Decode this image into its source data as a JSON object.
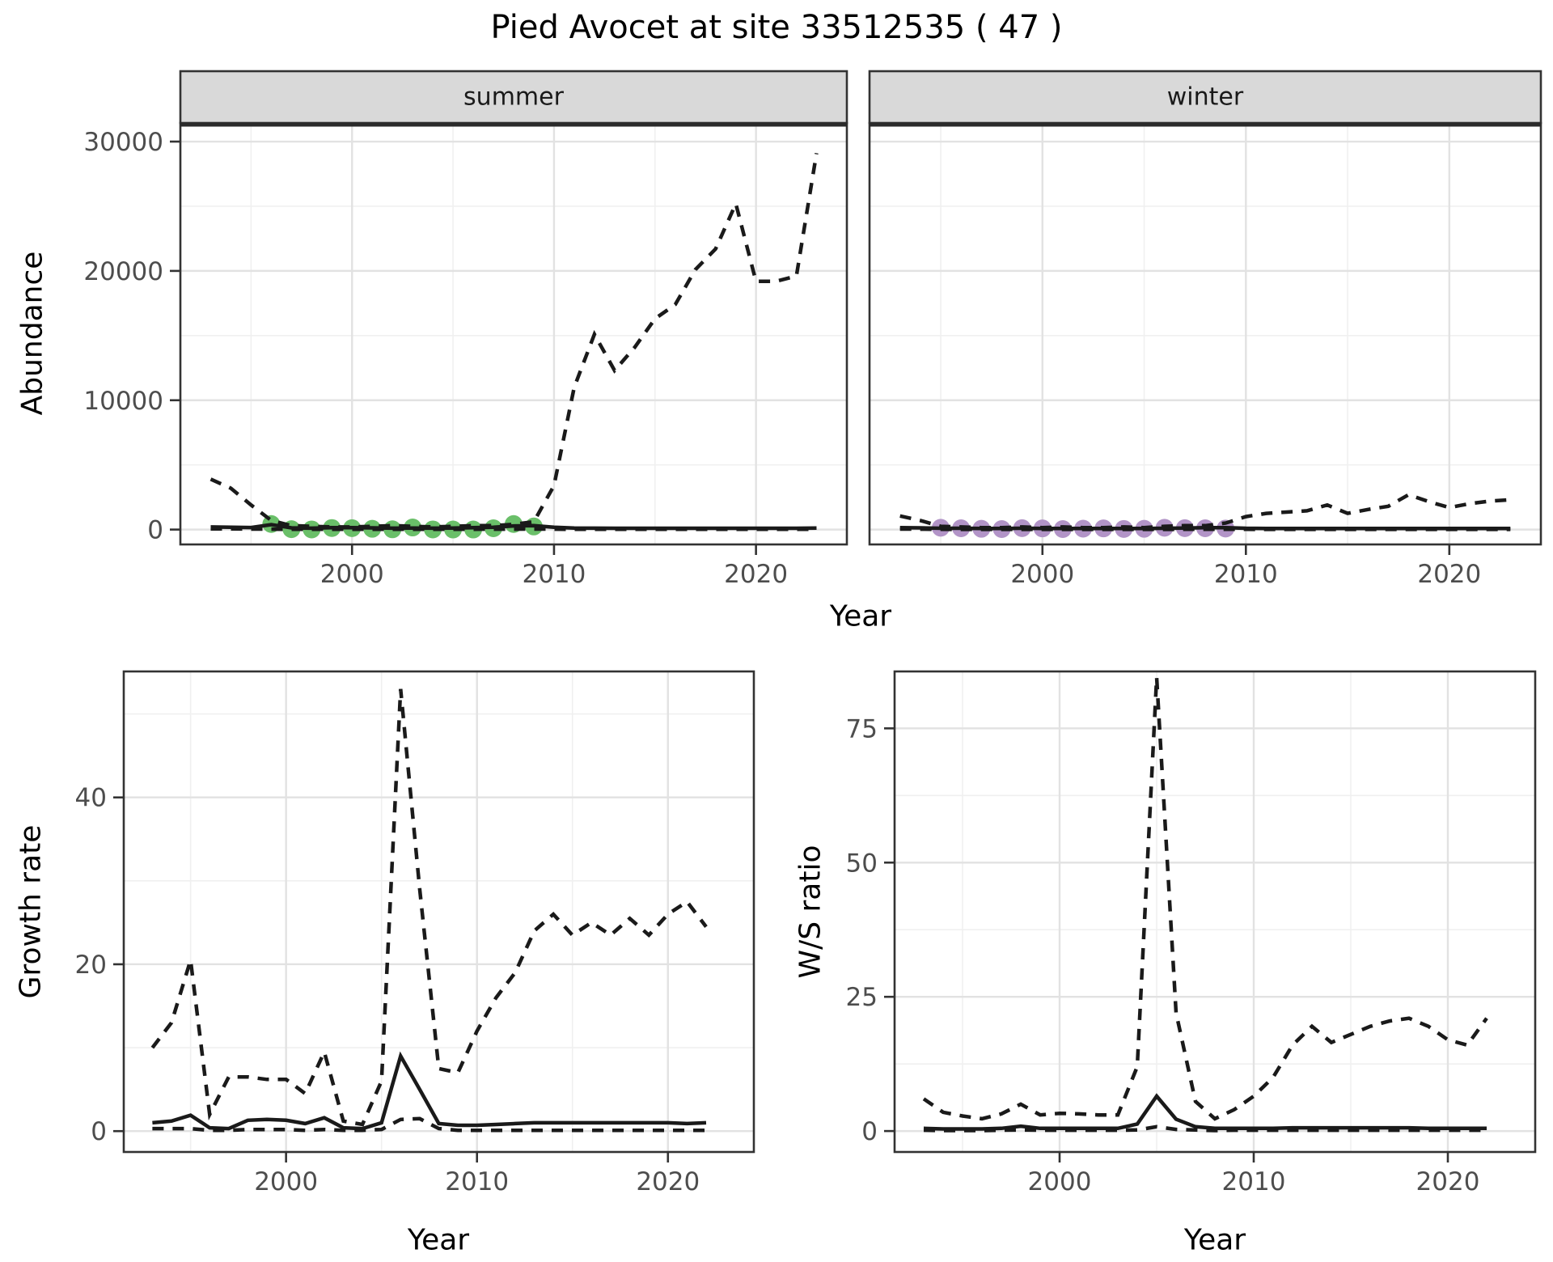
{
  "title": "Pied Avocet at site 33512535 ( 47 )",
  "axes": {
    "x_label": "Year",
    "abundance_label": "Abundance",
    "growth_label": "Growth rate",
    "ws_label": "W/S ratio"
  },
  "facets": {
    "summer": "summer",
    "winter": "winter"
  },
  "colors": {
    "summer_points": "#6abf69",
    "winter_points": "#b294c7",
    "line": "#1a1a1a",
    "strip_fill": "#d9d9d9",
    "panel_border": "#333333",
    "grid_major": "#e2e2e2",
    "grid_minor": "#f0f0f0",
    "tick_text": "#4d4d4d"
  },
  "chart_data": [
    {
      "panel": "summer",
      "type": "line",
      "facet_label": "summer",
      "xlabel": "Year",
      "ylabel": "Abundance",
      "x_domain": [
        1991.5,
        2024.5
      ],
      "y_domain": [
        -1150,
        31440
      ],
      "x_ticks": [
        2000,
        2010,
        2020
      ],
      "x_tick_labels": [
        "2000",
        "2010",
        "2020"
      ],
      "x_minor": [
        1995,
        2005,
        2015
      ],
      "y_ticks": [
        0,
        10000,
        20000,
        30000
      ],
      "y_tick_labels": [
        "0",
        "10000",
        "20000",
        "30000"
      ],
      "y_minor": [
        5000,
        15000,
        25000
      ],
      "x": [
        1993,
        1994,
        1995,
        1996,
        1997,
        1998,
        1999,
        2000,
        2001,
        2002,
        2003,
        2004,
        2005,
        2006,
        2007,
        2008,
        2009,
        2010,
        2011,
        2012,
        2013,
        2014,
        2015,
        2016,
        2017,
        2018,
        2019,
        2020,
        2021,
        2022,
        2023
      ],
      "series": [
        {
          "name": "mean",
          "style": "solid",
          "values": [
            200,
            180,
            160,
            380,
            130,
            110,
            150,
            150,
            130,
            110,
            120,
            110,
            120,
            150,
            180,
            280,
            300,
            180,
            120,
            110,
            100,
            100,
            100,
            100,
            100,
            100,
            100,
            100,
            100,
            100,
            120
          ]
        },
        {
          "name": "lower_ci",
          "style": "dashed",
          "values": [
            60,
            50,
            40,
            30,
            20,
            20,
            20,
            20,
            20,
            20,
            20,
            20,
            20,
            20,
            30,
            30,
            40,
            30,
            20,
            20,
            20,
            20,
            20,
            20,
            20,
            20,
            20,
            20,
            20,
            20,
            20
          ]
        },
        {
          "name": "upper_ci",
          "style": "dashed",
          "values": [
            3900,
            3200,
            1900,
            700,
            300,
            250,
            200,
            200,
            250,
            300,
            250,
            200,
            250,
            300,
            300,
            400,
            600,
            3400,
            11000,
            15100,
            12300,
            14100,
            16300,
            17400,
            20100,
            21700,
            25200,
            19200,
            19200,
            19600,
            29100
          ]
        }
      ],
      "points": {
        "name": "observed_counts",
        "color": "#6abf69",
        "x": [
          1996,
          1997,
          1998,
          1999,
          2000,
          2001,
          2002,
          2003,
          2004,
          2005,
          2006,
          2007,
          2008,
          2009
        ],
        "y": [
          430,
          30,
          10,
          120,
          110,
          60,
          20,
          160,
          10,
          5,
          5,
          100,
          430,
          240
        ]
      }
    },
    {
      "panel": "winter",
      "type": "line",
      "facet_label": "winter",
      "xlabel": "Year",
      "ylabel": "Abundance",
      "x_domain": [
        1991.5,
        2024.5
      ],
      "y_domain": [
        -1150,
        31440
      ],
      "x_ticks": [
        2000,
        2010,
        2020
      ],
      "x_tick_labels": [
        "2000",
        "2010",
        "2020"
      ],
      "x_minor": [
        1995,
        2005,
        2015
      ],
      "y_ticks": [
        0,
        10000,
        20000,
        30000
      ],
      "y_tick_labels": [
        "0",
        "10000",
        "20000",
        "30000"
      ],
      "y_minor": [
        5000,
        15000,
        25000
      ],
      "x": [
        1993,
        1994,
        1995,
        1996,
        1997,
        1998,
        1999,
        2000,
        2001,
        2002,
        2003,
        2004,
        2005,
        2006,
        2007,
        2008,
        2009,
        2010,
        2011,
        2012,
        2013,
        2014,
        2015,
        2016,
        2017,
        2018,
        2019,
        2020,
        2021,
        2022,
        2023
      ],
      "series": [
        {
          "name": "mean",
          "style": "solid",
          "values": [
            150,
            130,
            100,
            100,
            90,
            90,
            100,
            90,
            90,
            90,
            90,
            90,
            90,
            100,
            120,
            150,
            150,
            100,
            90,
            90,
            90,
            90,
            90,
            90,
            90,
            90,
            90,
            90,
            90,
            90,
            90
          ]
        },
        {
          "name": "lower_ci",
          "style": "dashed",
          "values": [
            40,
            30,
            20,
            15,
            15,
            15,
            15,
            15,
            15,
            15,
            15,
            15,
            15,
            15,
            20,
            20,
            20,
            20,
            15,
            15,
            15,
            15,
            15,
            15,
            15,
            15,
            15,
            15,
            15,
            15,
            15
          ]
        },
        {
          "name": "upper_ci",
          "style": "dashed",
          "values": [
            1050,
            700,
            250,
            200,
            150,
            150,
            200,
            150,
            200,
            150,
            150,
            200,
            150,
            250,
            300,
            300,
            500,
            1000,
            1250,
            1350,
            1450,
            1900,
            1250,
            1550,
            1800,
            2700,
            2150,
            1700,
            2000,
            2200,
            2300
          ]
        }
      ],
      "points": {
        "name": "observed_counts",
        "color": "#b294c7",
        "x": [
          1995,
          1996,
          1997,
          1998,
          1999,
          2000,
          2001,
          2002,
          2003,
          2004,
          2005,
          2006,
          2007,
          2008,
          2009
        ],
        "y": [
          140,
          100,
          60,
          40,
          110,
          90,
          40,
          70,
          90,
          50,
          60,
          140,
          110,
          100,
          80
        ]
      }
    },
    {
      "panel": "growth",
      "type": "line",
      "xlabel": "Year",
      "ylabel": "Growth rate",
      "x_domain": [
        1991.5,
        2024.5
      ],
      "y_domain": [
        -2.5,
        55.1
      ],
      "x_ticks": [
        2000,
        2010,
        2020
      ],
      "x_tick_labels": [
        "2000",
        "2010",
        "2020"
      ],
      "x_minor": [
        1995,
        2005,
        2015
      ],
      "y_ticks": [
        0,
        20,
        40
      ],
      "y_tick_labels": [
        "0",
        "20",
        "40"
      ],
      "y_minor": [
        10,
        30,
        50
      ],
      "x": [
        1993,
        1994,
        1995,
        1996,
        1997,
        1998,
        1999,
        2000,
        2001,
        2002,
        2003,
        2004,
        2005,
        2006,
        2007,
        2008,
        2009,
        2010,
        2011,
        2012,
        2013,
        2014,
        2015,
        2016,
        2017,
        2018,
        2019,
        2020,
        2021,
        2022
      ],
      "series": [
        {
          "name": "mean",
          "style": "solid",
          "values": [
            1.0,
            1.2,
            1.9,
            0.4,
            0.3,
            1.3,
            1.4,
            1.3,
            0.9,
            1.6,
            0.4,
            0.3,
            1.0,
            9.0,
            5.0,
            0.9,
            0.7,
            0.7,
            0.8,
            0.9,
            1.0,
            1.0,
            1.0,
            1.0,
            1.0,
            1.0,
            1.0,
            1.0,
            0.9,
            1.0
          ]
        },
        {
          "name": "lower_ci",
          "style": "dashed",
          "values": [
            0.3,
            0.3,
            0.3,
            0.1,
            0.1,
            0.2,
            0.2,
            0.2,
            0.1,
            0.2,
            0.1,
            0.1,
            0.2,
            1.4,
            1.5,
            0.3,
            0.1,
            0.1,
            0.1,
            0.1,
            0.1,
            0.1,
            0.1,
            0.1,
            0.1,
            0.1,
            0.1,
            0.1,
            0.1,
            0.1
          ]
        },
        {
          "name": "upper_ci",
          "style": "dashed",
          "values": [
            10,
            13,
            20.5,
            2,
            6.5,
            6.5,
            6.2,
            6.2,
            4.5,
            9.5,
            1.2,
            0.8,
            6,
            53,
            29,
            7.5,
            7,
            12,
            16,
            19,
            24,
            26,
            23.5,
            25,
            23.5,
            25.5,
            23.5,
            26,
            27.5,
            24.5
          ]
        }
      ]
    },
    {
      "panel": "ws",
      "type": "line",
      "xlabel": "Year",
      "ylabel": "W/S ratio",
      "x_domain": [
        1991.5,
        2024.5
      ],
      "y_domain": [
        -3.9,
        85.6
      ],
      "x_ticks": [
        2000,
        2010,
        2020
      ],
      "x_tick_labels": [
        "2000",
        "2010",
        "2020"
      ],
      "x_minor": [
        1995,
        2005,
        2015
      ],
      "y_ticks": [
        0,
        25,
        50,
        75
      ],
      "y_tick_labels": [
        "0",
        "25",
        "50",
        "75"
      ],
      "y_minor": [
        12.5,
        37.5,
        62.5
      ],
      "x": [
        1993,
        1994,
        1995,
        1996,
        1997,
        1998,
        1999,
        2000,
        2001,
        2002,
        2003,
        2004,
        2005,
        2006,
        2007,
        2008,
        2009,
        2010,
        2011,
        2012,
        2013,
        2014,
        2015,
        2016,
        2017,
        2018,
        2019,
        2020,
        2021,
        2022
      ],
      "series": [
        {
          "name": "mean",
          "style": "solid",
          "values": [
            0.5,
            0.4,
            0.4,
            0.4,
            0.5,
            0.9,
            0.5,
            0.5,
            0.5,
            0.5,
            0.5,
            1.3,
            6.5,
            2.2,
            0.8,
            0.5,
            0.5,
            0.5,
            0.5,
            0.6,
            0.6,
            0.6,
            0.6,
            0.6,
            0.6,
            0.6,
            0.5,
            0.5,
            0.5,
            0.5
          ]
        },
        {
          "name": "lower_ci",
          "style": "dashed",
          "values": [
            0.15,
            0.1,
            0.1,
            0.1,
            0.15,
            0.2,
            0.15,
            0.15,
            0.15,
            0.15,
            0.15,
            0.2,
            0.8,
            0.3,
            0.2,
            0.1,
            0.15,
            0.15,
            0.15,
            0.15,
            0.15,
            0.15,
            0.15,
            0.15,
            0.15,
            0.15,
            0.15,
            0.15,
            0.15,
            0.15
          ]
        },
        {
          "name": "upper_ci",
          "style": "dashed",
          "values": [
            6,
            3.5,
            2.8,
            2.3,
            3.2,
            5,
            3,
            3.3,
            3.2,
            3,
            3,
            12,
            84.5,
            22,
            5.5,
            2.3,
            4,
            6.5,
            10,
            16,
            19.5,
            16.5,
            18,
            19.5,
            20.5,
            21,
            19.5,
            17,
            16,
            21
          ]
        }
      ]
    }
  ]
}
